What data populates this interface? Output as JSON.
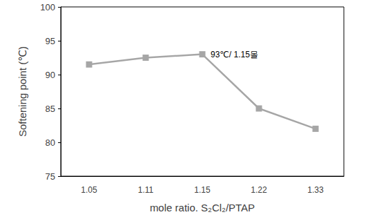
{
  "chart_data": {
    "type": "line",
    "x_label": "mole ratio. S₂Cl₂/PTAP",
    "y_label": "Softening point (℃)",
    "categories": [
      "1.05",
      "1.11",
      "1.15",
      "1.22",
      "1.33"
    ],
    "values": [
      91.5,
      92.5,
      93,
      85,
      82
    ],
    "color": "#a6a6a6",
    "marker": "square",
    "ylim": [
      75,
      100
    ],
    "yticks": [
      75,
      80,
      85,
      90,
      95,
      100
    ],
    "grid": false,
    "annotations": [
      {
        "text": "93℃/ 1.15몰",
        "x": "1.15",
        "y": 93
      }
    ]
  }
}
